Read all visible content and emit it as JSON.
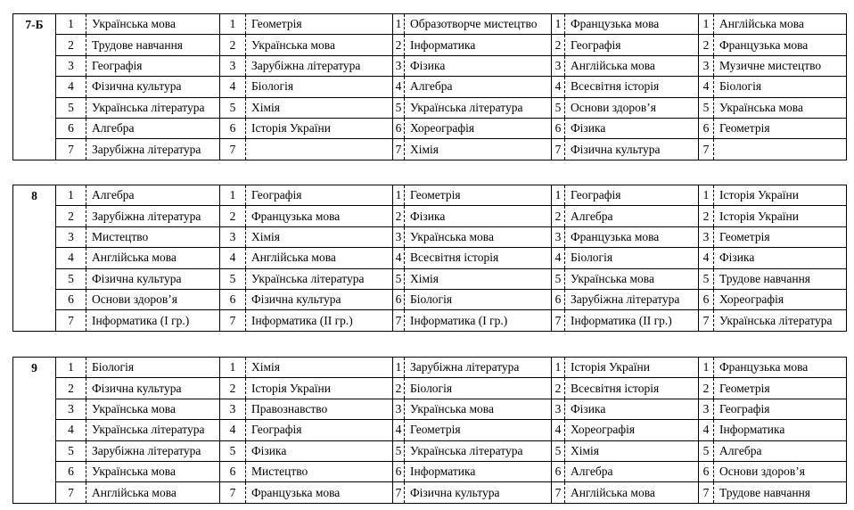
{
  "classes": [
    {
      "name": "7-Б",
      "days": [
        [
          "Українська мова",
          "Трудове навчання",
          "Географія",
          "Фізична культура",
          "Українська література",
          "Алгебра",
          "Зарубіжна література"
        ],
        [
          "Геометрія",
          "Українська мова",
          "Зарубіжна література",
          "Біологія",
          "Хімія",
          "Історія України",
          ""
        ],
        [
          "Образотворче мистецтво",
          "Інформатика",
          "Фізика",
          "Алгебра",
          "Українська література",
          "Хореографія",
          "Хімія"
        ],
        [
          "Французька мова",
          "Географія",
          "Англійська мова",
          "Всесвітня історія",
          "Основи здоров’я",
          "Фізика",
          "Фізична культура"
        ],
        [
          "Англійська мова",
          "Французька мова",
          "Музичне мистецтво",
          "Біологія",
          "Українська мова",
          "Геометрія",
          ""
        ]
      ]
    },
    {
      "name": "8",
      "days": [
        [
          "Алгебра",
          "Зарубіжна література",
          "Мистецтво",
          "Англійська мова",
          "Фізична культура",
          "Основи здоров’я",
          " Інформатика (І гр.)"
        ],
        [
          "Географія",
          "Французька мова",
          "Хімія",
          "Англійська мова",
          "Українська література",
          "Фізична культура",
          "Інформатика (ІІ гр.)"
        ],
        [
          "Геометрія",
          "Фізика",
          "Українська мова",
          "Всесвітня історія",
          "Хімія",
          "Біологія",
          "Інформатика (І гр.)"
        ],
        [
          "Географія",
          "Алгебра",
          "Французька мова",
          "Біологія",
          "Українська мова",
          "Зарубіжна література",
          "Інформатика (ІІ гр.)"
        ],
        [
          "Історія України",
          "Історія України",
          "Геометрія",
          "Фізика",
          "Трудове навчання",
          "Хореографія",
          "Українська література"
        ]
      ]
    },
    {
      "name": "9",
      "days": [
        [
          "Біологія",
          "Фізична культура",
          "Українська мова",
          "Українська література",
          "Зарубіжна література",
          "Українська мова",
          "Англійська мова"
        ],
        [
          "Хімія",
          "Історія України",
          "Правознавство",
          "Географія",
          "Фізика",
          "Мистецтво",
          "Французька мова"
        ],
        [
          "Зарубіжна література",
          "Біологія",
          "Українська мова",
          "Геометрія",
          "Українська література",
          "Інформатика",
          "Фізична культура"
        ],
        [
          "Історія України",
          "Всесвітня історія",
          "Фізика",
          "Хореографія",
          "Хімія",
          "Алгебра",
          "Англійська мова"
        ],
        [
          "Французька мова",
          "Геометрія",
          "Географія",
          "Інформатика",
          "Алгебра",
          "Основи здоров’я",
          "Трудове навчання"
        ]
      ]
    }
  ],
  "lesson_numbers": [
    "1",
    "2",
    "3",
    "4",
    "5",
    "6",
    "7"
  ]
}
